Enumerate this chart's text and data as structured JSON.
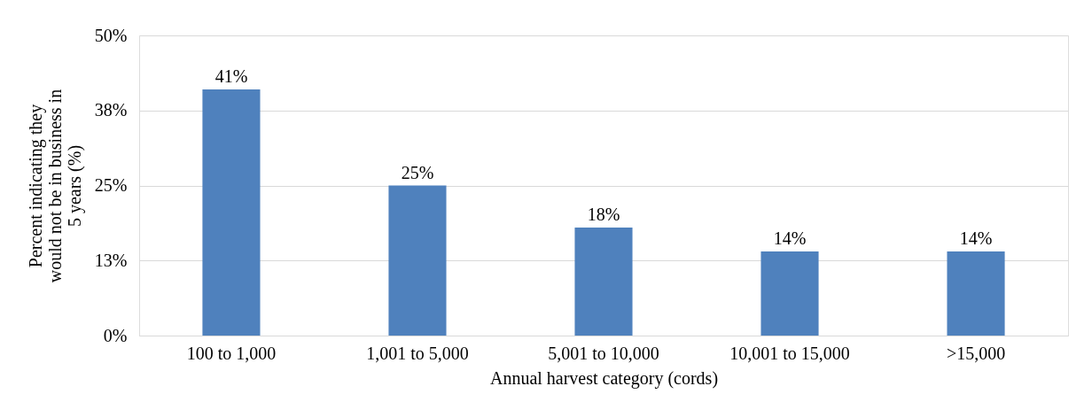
{
  "chart_data": {
    "type": "bar",
    "xlabel": "Annual harvest category (cords)",
    "ylabel": "Percent indicating they\nwould not be in business in\n5 years (%)",
    "categories": [
      "100 to 1,000",
      "1,001 to 5,000",
      "5,001 to 10,000",
      "10,001 to 15,000",
      ">15,000"
    ],
    "values": [
      41,
      25,
      18,
      14,
      14
    ],
    "value_labels": [
      "41%",
      "25%",
      "18%",
      "14%",
      "14%"
    ],
    "color": "#4f81bd",
    "ylim": [
      0,
      50
    ],
    "yticks": [
      {
        "value": 0,
        "label": "0%"
      },
      {
        "value": 12.5,
        "label": "13%"
      },
      {
        "value": 25,
        "label": "25%"
      },
      {
        "value": 37.5,
        "label": "38%"
      },
      {
        "value": 50,
        "label": "50%"
      }
    ],
    "grid": "y"
  }
}
